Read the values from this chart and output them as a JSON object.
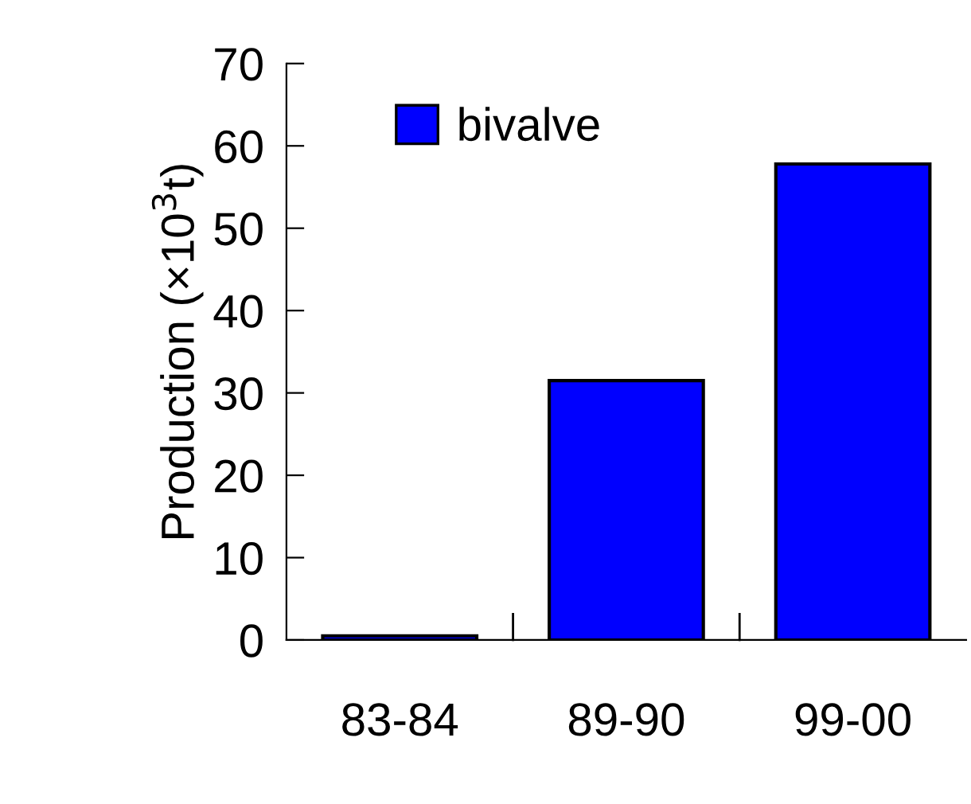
{
  "chart_data": {
    "type": "bar",
    "ylabel": "Production (×10$^{3}$t)",
    "categories": [
      "83-84",
      "89-90",
      "99-00"
    ],
    "series": [
      {
        "name": "bivalve",
        "color": "#0000ff",
        "values": [
          0.5,
          31.5,
          57.8
        ]
      }
    ],
    "ylim": [
      0,
      70
    ],
    "yticks": [
      0,
      10,
      20,
      30,
      40,
      50,
      60,
      70
    ],
    "grid": false,
    "legend": "top left"
  }
}
